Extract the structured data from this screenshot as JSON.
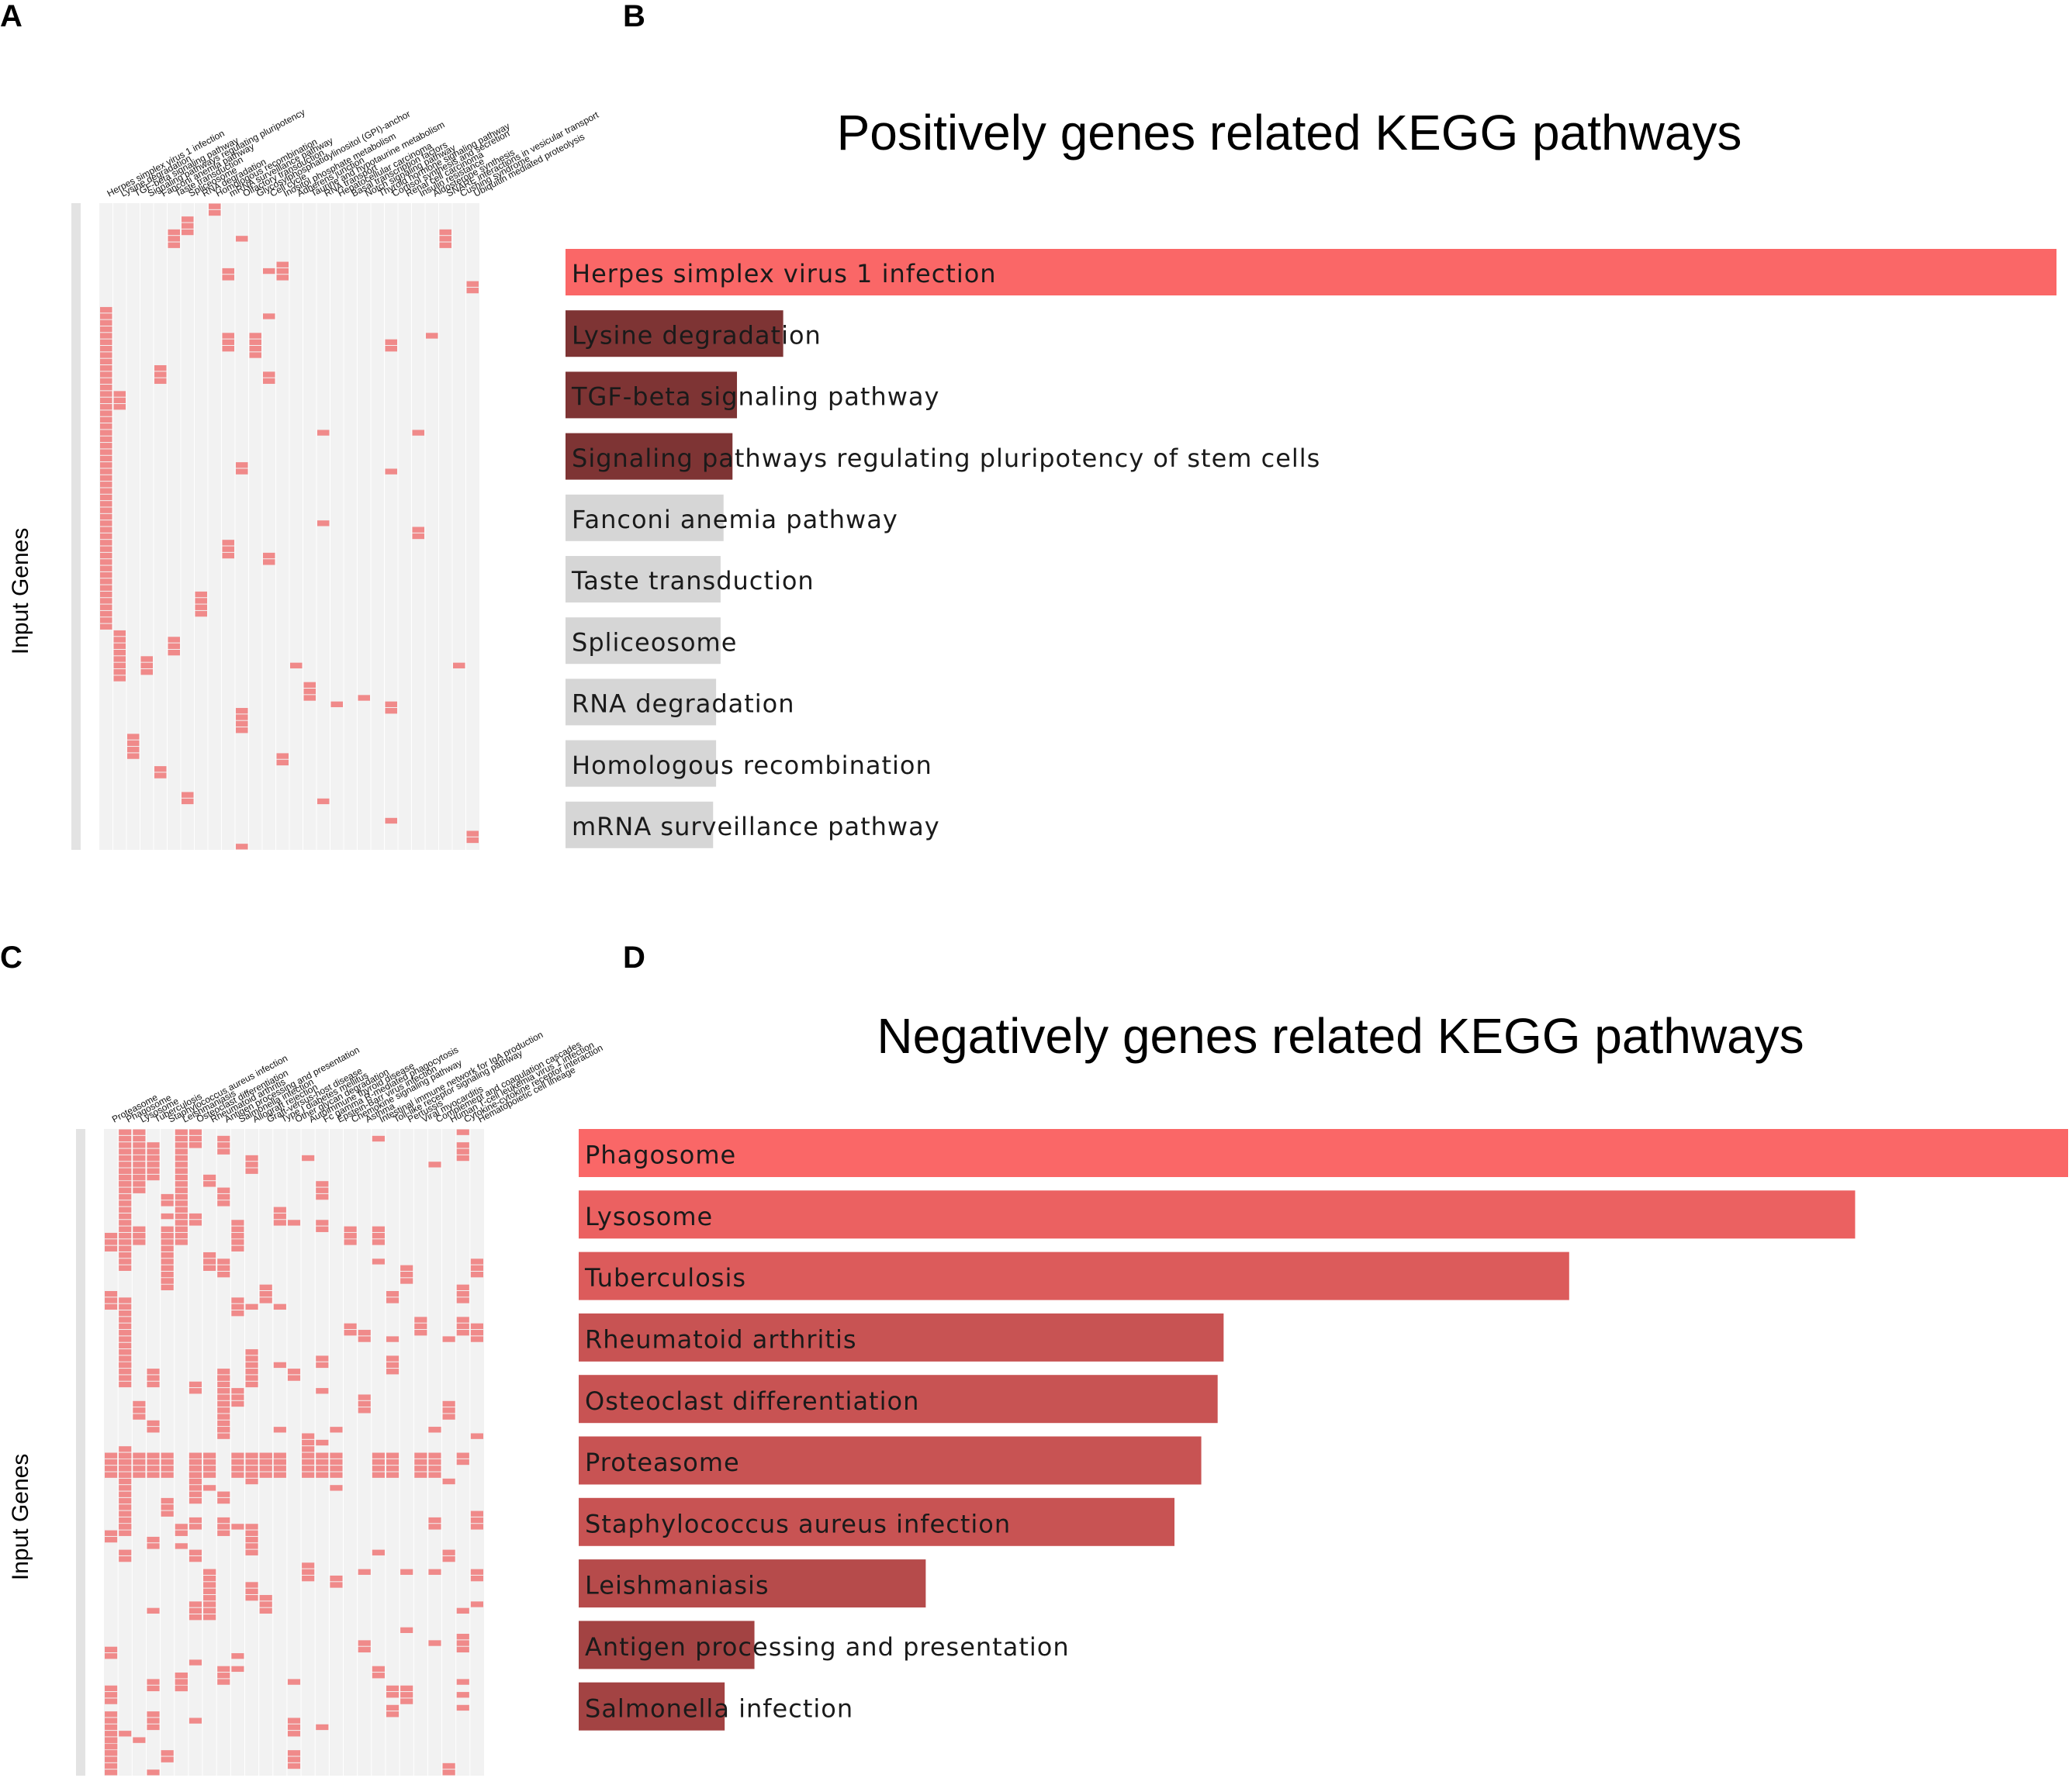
{
  "colors": {
    "heat_cell": "#f08a8a",
    "heat_bg": "#f2f2f2",
    "heat_grid": "#ffffff",
    "bar_top": "#fa6767",
    "bar_dark": "#7e3434",
    "bar_grey": "#d6d6d6"
  },
  "panels": {
    "a": {
      "letter": "A"
    },
    "b": {
      "letter": "B"
    },
    "c": {
      "letter": "C"
    },
    "d": {
      "letter": "D"
    }
  },
  "chart_data": [
    {
      "panel": "A",
      "type": "heatmap",
      "ylabel": "Input Genes",
      "columns": [
        "Herpes simplex virus 1 infection",
        "Lysine degradation",
        "TGF-beta signaling pathway",
        "Signaling pathways regulating pluripotency",
        "Fanconi anemia pathway",
        "Taste transduction",
        "Spliceosome",
        "RNA degradation",
        "Homologous recombination",
        "mRNA surveillance pathway",
        "Olfactory transduction",
        "Glycosylphosphatidylinositol (GPI)-anchor",
        "Cell cycle",
        "Inositol phosphate metabolism",
        "Adherens junction",
        "Taurine and hypotaurine metabolism",
        "RNA transport",
        "Hepatocellular carcinoma",
        "Basal transcription factors",
        "Notch signaling pathway",
        "Thyroid hormone signaling pathway",
        "Cortisol synthesis and secretion",
        "Renal cell carcinoma",
        "Insulin resistance",
        "Aldosterone synthesis",
        "SNARE interactions in vesicular transport",
        "Cushing syndrome",
        "Ubiquitin mediated proteolysis"
      ],
      "n_rows": 100,
      "note": "Binary gene-pathway membership; filled cells are pink."
    },
    {
      "panel": "B",
      "type": "bar",
      "orientation": "horizontal",
      "title": "Positively genes related KEGG pathways",
      "categories": [
        "Herpes simplex virus 1 infection",
        "Lysine degradation",
        "TGF-beta signaling pathway",
        "Signaling pathways regulating pluripotency of stem cells",
        "Fanconi anemia pathway",
        "Taste transduction",
        "Spliceosome",
        "RNA degradation",
        "Homologous recombination",
        "mRNA surveillance pathway"
      ],
      "values": [
        1.0,
        0.146,
        0.115,
        0.112,
        0.106,
        0.104,
        0.104,
        0.101,
        0.101,
        0.099
      ],
      "shades": [
        "top",
        "dark",
        "dark",
        "dark",
        "grey",
        "grey",
        "grey",
        "grey",
        "grey",
        "grey"
      ],
      "xlim": [
        0,
        1
      ]
    },
    {
      "panel": "C",
      "type": "heatmap",
      "ylabel": "Input Genes",
      "columns": [
        "Proteasome",
        "Phagosome",
        "Lysosome",
        "Tuberculosis",
        "Staphylococcus aureus infection",
        "Leishmaniasis",
        "Osteoclast differentiation",
        "Rheumatoid arthritis",
        "Antigen processing and presentation",
        "Salmonella infection",
        "Allograft rejection",
        "Graft-versus-host disease",
        "Type I diabetes mellitus",
        "Other glycan degradation",
        "Autoimmune thyroid disease",
        "Fc gamma R-mediated phagocytosis",
        "Epstein-Barr virus infection",
        "Chemokine signaling pathway",
        "Asthma",
        "Intestinal immune network for IgA production",
        "Toll-like receptor signaling pathway",
        "Pertussis",
        "Viral myocarditis",
        "Complement and coagulation cascades",
        "Human T-cell leukemia virus 1 infection",
        "Cytokine-cytokine receptor interaction",
        "Hematopoietic cell lineage"
      ],
      "n_rows": 100,
      "note": "Binary gene-pathway membership; filled cells are pink."
    },
    {
      "panel": "D",
      "type": "bar",
      "orientation": "horizontal",
      "title": "Negatively genes related KEGG pathways",
      "categories": [
        "Phagosome",
        "Lysosome",
        "Tuberculosis",
        "Rheumatoid arthritis",
        "Osteoclast differentiation",
        "Proteasome",
        "Staphylococcus aureus infection",
        "Leishmaniasis",
        "Antigen processing and presentation",
        "Salmonella infection"
      ],
      "values": [
        1.0,
        0.857,
        0.665,
        0.433,
        0.429,
        0.418,
        0.4,
        0.233,
        0.118,
        0.098
      ],
      "shades": [
        1.0,
        0.88,
        0.76,
        0.6,
        0.6,
        0.6,
        0.6,
        0.45,
        0.3,
        0.3
      ],
      "xlim": [
        0,
        1
      ]
    }
  ]
}
